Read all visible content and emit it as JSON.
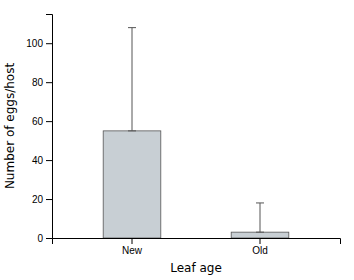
{
  "chart_data": {
    "type": "bar",
    "categories": [
      "New",
      "Old"
    ],
    "values": [
      55,
      3
    ],
    "errors_lower": [
      0,
      0
    ],
    "errors_upper": [
      53,
      15
    ],
    "color": "#c8cfd4",
    "xlabel": "Leaf age",
    "ylabel": "Number of eggs/host",
    "ylim": [
      0,
      115
    ],
    "yticks": [
      0,
      20,
      40,
      60,
      80,
      100
    ],
    "grid": false
  }
}
